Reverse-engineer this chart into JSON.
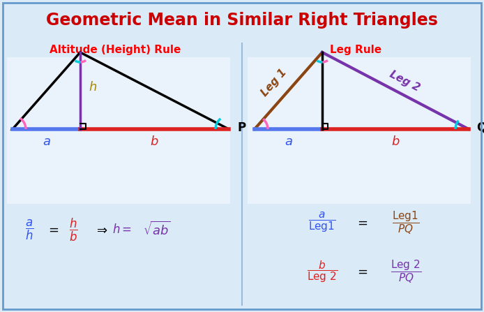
{
  "title": "Geometric Mean in Similar Right Triangles",
  "title_color": "#cc0000",
  "title_fontsize": 17,
  "bg_color": "#daeaf7",
  "inner_bg": "#eaf3fc",
  "left_label": "Altitude (Height) Rule",
  "right_label": "Leg Rule",
  "divider_color": "#99bbdd",
  "border_color": "#6699cc"
}
